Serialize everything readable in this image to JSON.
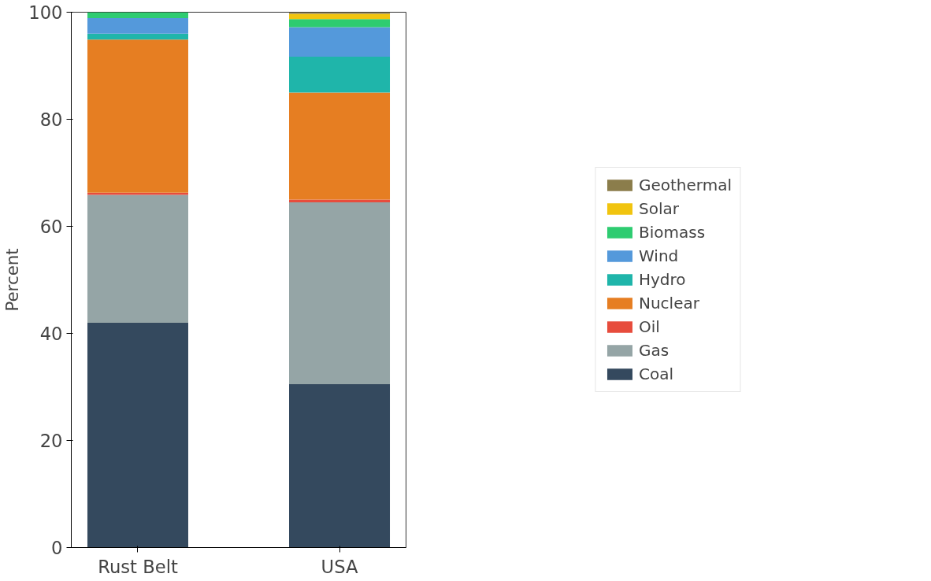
{
  "chart_data": {
    "type": "bar",
    "stacked": true,
    "ylabel": "Percent",
    "categories": [
      "Rust Belt",
      "USA"
    ],
    "ylim": [
      0,
      100
    ],
    "yticks": [
      0,
      20,
      40,
      60,
      80,
      100
    ],
    "grid": false,
    "legend": "right",
    "series": [
      {
        "name": "Coal",
        "color": "#34495e",
        "values": [
          42.0,
          30.5
        ]
      },
      {
        "name": "Gas",
        "color": "#95a5a6",
        "values": [
          23.9,
          34.0
        ]
      },
      {
        "name": "Oil",
        "color": "#e74c3c",
        "values": [
          0.4,
          0.5
        ]
      },
      {
        "name": "Nuclear",
        "color": "#e67e22",
        "values": [
          28.6,
          20.0
        ]
      },
      {
        "name": "Hydro",
        "color": "#1fb5aa",
        "values": [
          1.1,
          6.7
        ]
      },
      {
        "name": "Wind",
        "color": "#5499db",
        "values": [
          2.9,
          5.5
        ]
      },
      {
        "name": "Biomass",
        "color": "#2ecc71",
        "values": [
          1.1,
          1.5
        ]
      },
      {
        "name": "Solar",
        "color": "#f1c40f",
        "values": [
          0.0,
          1.0
        ]
      },
      {
        "name": "Geothermal",
        "color": "#8b7d4b",
        "values": [
          0.0,
          0.3
        ]
      }
    ]
  }
}
